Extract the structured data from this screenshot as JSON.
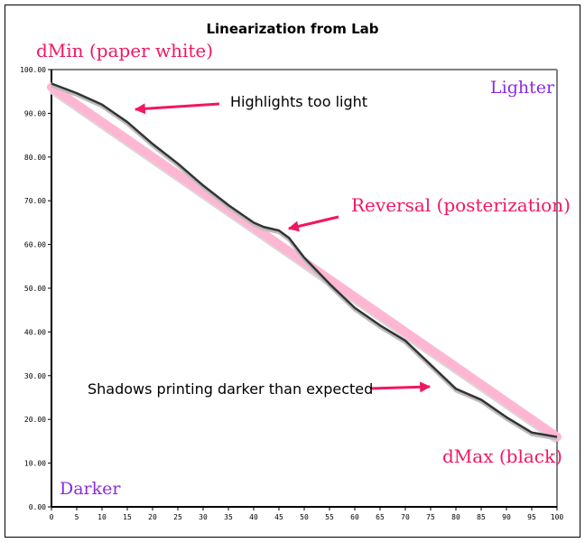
{
  "chart_data": {
    "type": "line",
    "title": "Linearization from Lab",
    "xlabel": "",
    "ylabel": "",
    "xlim": [
      0,
      100
    ],
    "ylim": [
      0,
      100
    ],
    "x_ticks": [
      "0",
      "5",
      "10",
      "15",
      "20",
      "25",
      "30",
      "35",
      "40",
      "45",
      "50",
      "55",
      "60",
      "65",
      "70",
      "75",
      "80",
      "85",
      "90",
      "95",
      "100"
    ],
    "y_ticks": [
      "0.00",
      "10.00",
      "20.00",
      "30.00",
      "40.00",
      "50.00",
      "60.00",
      "70.00",
      "80.00",
      "90.00",
      "100.00"
    ],
    "grid": false,
    "series": [
      {
        "role": "target",
        "color": "#ffb6d3",
        "x": [
          0,
          100
        ],
        "y": [
          96,
          16
        ]
      },
      {
        "role": "measured",
        "color": "#333333",
        "x": [
          0,
          5,
          10,
          15,
          20,
          25,
          30,
          35,
          40,
          42,
          45,
          47,
          50,
          55,
          60,
          65,
          70,
          75,
          80,
          85,
          90,
          95,
          100
        ],
        "y": [
          96.8,
          94.6,
          92,
          88,
          83,
          78.5,
          73.5,
          69,
          65,
          64,
          63.2,
          61.5,
          57,
          51,
          45.5,
          41.5,
          38,
          32.5,
          27,
          24.5,
          20.5,
          17,
          16
        ]
      }
    ],
    "annotations": {
      "dmin": "dMin (paper white)",
      "lighter": "Lighter",
      "darker": "Darker",
      "highlights": "Highlights too light",
      "reversal": "Reversal (posterization)",
      "shadows": "Shadows printing darker than expected",
      "dmax": "dMax (black)"
    },
    "colors": {
      "annotation_pink": "#f0185f",
      "annotation_purple": "#8a2be2"
    }
  }
}
